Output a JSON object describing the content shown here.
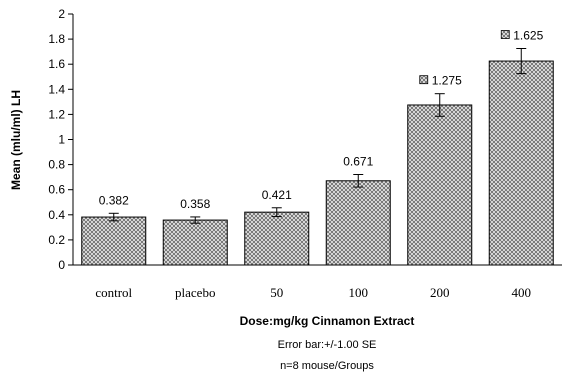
{
  "chart_data": {
    "type": "bar",
    "categories": [
      "control",
      "placebo",
      "50",
      "100",
      "200",
      "400"
    ],
    "values": [
      0.382,
      0.358,
      0.421,
      0.671,
      1.275,
      1.625
    ],
    "value_labels": [
      "0.382",
      "0.358",
      "0.421",
      "0.671",
      "1.275",
      "1.625"
    ],
    "error": [
      0.03,
      0.025,
      0.035,
      0.05,
      0.09,
      0.1
    ],
    "ylabel": "Mean (mlu/ml) LH",
    "xlabel": "Dose:mg/kg Cinnamon Extract",
    "notes": [
      "Error bar:+/-1.00 SE",
      "n=8 mouse/Groups"
    ],
    "ylim": [
      0,
      2
    ],
    "yticks": [
      "0",
      "0.2",
      "0.4",
      "0.6",
      "0.8",
      "1",
      "1.2",
      "1.4",
      "1.6",
      "1.8",
      "2"
    ],
    "grid": false,
    "bar_color": "#c8c8c8",
    "bar_pattern": "crosshatch"
  }
}
